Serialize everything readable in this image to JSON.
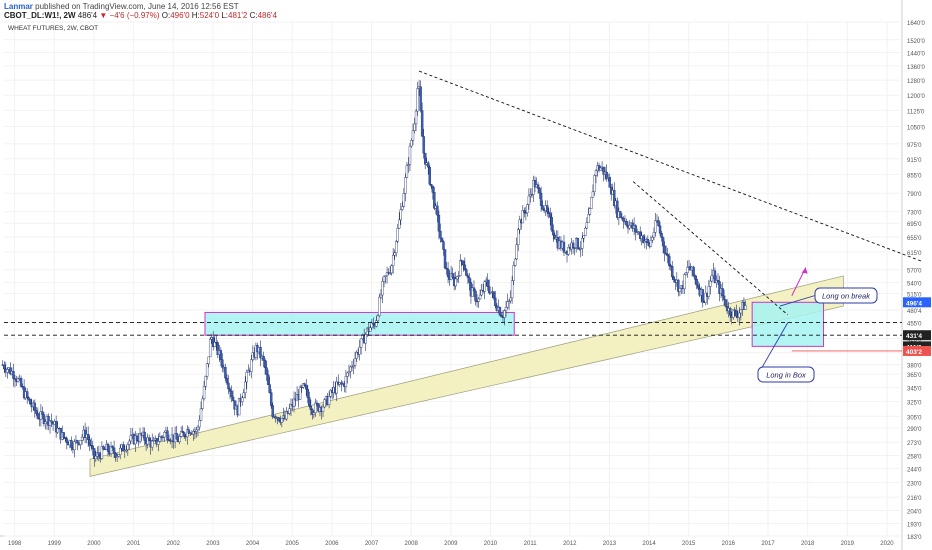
{
  "header": {
    "author": "Lanmar",
    "published": "published on TradingView.com, June 14, 2016 12:56 EST",
    "symbol": "CBOT_DL:W1!, 2W",
    "last": "486'4",
    "change_arrow": "▼",
    "change": "−4'6 (−0.97%)",
    "o_label": "O:",
    "o": "496'0",
    "h_label": "H:",
    "h": "524'0",
    "l_label": "L:",
    "l": "481'2",
    "c_label": "C:",
    "c": "486'4"
  },
  "colors": {
    "candle": "#3a5fb8",
    "wick": "#1f2f66",
    "box_fill": "#a5f3f1",
    "box_border": "#cc33cc",
    "trend_fill": "#f3f0c2",
    "trend_border": "#9c9c7a",
    "annotation_border": "#2e3ba8",
    "arrow": "#cc33cc",
    "price_blue": "#2962ff",
    "price_red": "#ef5350",
    "price_black": "#222222"
  },
  "chart_data": {
    "type": "candlestick",
    "title": "WHEAT FUTURES, 2W, CBOT",
    "y_scale": "log",
    "ylim": [
      183,
      1640
    ],
    "xlim": [
      1997.7,
      2021.1
    ],
    "x_ticks": [
      "1998",
      "1999",
      "2000",
      "2001",
      "2002",
      "2003",
      "2004",
      "2005",
      "2006",
      "2007",
      "2008",
      "2009",
      "2010",
      "2011",
      "2012",
      "2013",
      "2014",
      "2015",
      "2016",
      "2017",
      "2018",
      "2019",
      "2020"
    ],
    "y_ticks": [
      "1640'0",
      "1520'0",
      "1440'0",
      "1360'0",
      "1280'0",
      "1200'0",
      "1125'0",
      "1050'0",
      "975'0",
      "915'0",
      "855'0",
      "790'0",
      "730'0",
      "695'0",
      "655'0",
      "615'0",
      "570'0",
      "540'0",
      "515'0",
      "480'4",
      "455'0",
      "425'0",
      "400'2",
      "380'0",
      "365'0",
      "345'0",
      "325'0",
      "305'0",
      "290'0",
      "273'0",
      "258'0",
      "244'0",
      "230'0",
      "216'0",
      "204'0",
      "193'0",
      "183'0"
    ],
    "price_markers": [
      {
        "label": "496'4",
        "value": 496,
        "color": "blue"
      },
      {
        "label": "431'4",
        "value": 431,
        "color": "black"
      },
      {
        "label": "411'0",
        "value": 411,
        "color": "black"
      },
      {
        "label": "403'2",
        "value": 403,
        "color": "red"
      }
    ],
    "price_path": [
      [
        1997.7,
        380
      ],
      [
        1998.0,
        365
      ],
      [
        1998.3,
        330
      ],
      [
        1998.6,
        305
      ],
      [
        1998.9,
        300
      ],
      [
        1999.2,
        280
      ],
      [
        1999.5,
        270
      ],
      [
        1999.8,
        285
      ],
      [
        2000.0,
        255
      ],
      [
        2000.3,
        265
      ],
      [
        2000.6,
        260
      ],
      [
        2000.9,
        275
      ],
      [
        2001.2,
        280
      ],
      [
        2001.5,
        270
      ],
      [
        2001.8,
        285
      ],
      [
        2002.1,
        275
      ],
      [
        2002.4,
        290
      ],
      [
        2002.6,
        285
      ],
      [
        2002.8,
        350
      ],
      [
        2002.95,
        430
      ],
      [
        2003.2,
        390
      ],
      [
        2003.4,
        350
      ],
      [
        2003.6,
        310
      ],
      [
        2003.9,
        370
      ],
      [
        2004.1,
        410
      ],
      [
        2004.3,
        380
      ],
      [
        2004.5,
        310
      ],
      [
        2004.8,
        300
      ],
      [
        2005.1,
        330
      ],
      [
        2005.3,
        345
      ],
      [
        2005.5,
        315
      ],
      [
        2005.8,
        320
      ],
      [
        2006.1,
        345
      ],
      [
        2006.3,
        350
      ],
      [
        2006.5,
        380
      ],
      [
        2006.7,
        410
      ],
      [
        2006.9,
        440
      ],
      [
        2007.1,
        455
      ],
      [
        2007.3,
        540
      ],
      [
        2007.5,
        580
      ],
      [
        2007.7,
        700
      ],
      [
        2007.9,
        880
      ],
      [
        2008.1,
        1100
      ],
      [
        2008.18,
        1280
      ],
      [
        2008.3,
        950
      ],
      [
        2008.5,
        820
      ],
      [
        2008.7,
        680
      ],
      [
        2008.9,
        560
      ],
      [
        2009.1,
        540
      ],
      [
        2009.3,
        600
      ],
      [
        2009.5,
        520
      ],
      [
        2009.7,
        500
      ],
      [
        2009.9,
        540
      ],
      [
        2010.1,
        500
      ],
      [
        2010.3,
        470
      ],
      [
        2010.5,
        500
      ],
      [
        2010.7,
        690
      ],
      [
        2010.9,
        740
      ],
      [
        2011.1,
        830
      ],
      [
        2011.3,
        760
      ],
      [
        2011.5,
        700
      ],
      [
        2011.7,
        640
      ],
      [
        2011.9,
        620
      ],
      [
        2012.1,
        640
      ],
      [
        2012.3,
        630
      ],
      [
        2012.5,
        720
      ],
      [
        2012.65,
        880
      ],
      [
        2012.8,
        880
      ],
      [
        2013.0,
        830
      ],
      [
        2013.2,
        730
      ],
      [
        2013.5,
        690
      ],
      [
        2013.8,
        660
      ],
      [
        2014.0,
        630
      ],
      [
        2014.2,
        700
      ],
      [
        2014.4,
        620
      ],
      [
        2014.6,
        560
      ],
      [
        2014.8,
        520
      ],
      [
        2015.0,
        580
      ],
      [
        2015.2,
        540
      ],
      [
        2015.4,
        500
      ],
      [
        2015.6,
        560
      ],
      [
        2015.8,
        520
      ],
      [
        2016.0,
        480
      ],
      [
        2016.2,
        470
      ],
      [
        2016.4,
        490
      ],
      [
        2016.45,
        487
      ]
    ],
    "annotations": [
      {
        "text": "Long on break",
        "type": "callout"
      },
      {
        "text": "Long in Box",
        "type": "callout"
      }
    ],
    "resistance_zone": {
      "x": [
        2002.8,
        2010.6
      ],
      "y": [
        431,
        475
      ]
    },
    "target_box": {
      "x": [
        2016.6,
        2018.4
      ],
      "y": [
        411,
        496
      ]
    },
    "trend_channel": {
      "x": [
        1999.9,
        2018.9
      ],
      "y_start": [
        254,
        236
      ],
      "y_end": [
        555,
        488
      ]
    },
    "trend_lines": [
      {
        "x": [
          2008.2,
          2020.9
        ],
        "y": [
          1330,
          590
        ]
      },
      {
        "x": [
          2013.6,
          2017.5
        ],
        "y": [
          830,
          470
        ]
      }
    ],
    "horizontal_lines": [
      {
        "value": 455,
        "dashed": true
      },
      {
        "value": 431,
        "dashed": true
      },
      {
        "value": 403,
        "dashed": false
      }
    ]
  }
}
